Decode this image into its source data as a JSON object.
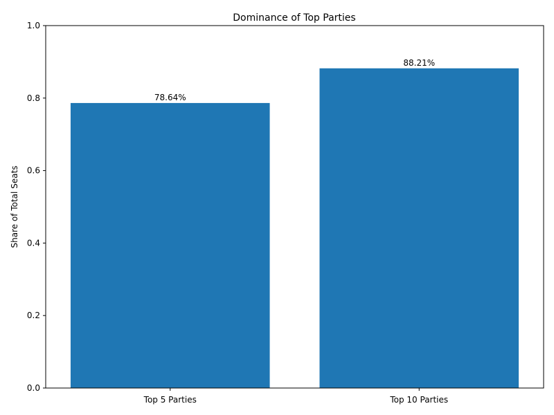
{
  "chart_data": {
    "type": "bar",
    "title": "Dominance of Top Parties",
    "xlabel": "",
    "ylabel": "Share of Total Seats",
    "categories": [
      "Top 5 Parties",
      "Top 10 Parties"
    ],
    "values": [
      0.7864,
      0.8821
    ],
    "data_labels": [
      "78.64%",
      "88.21%"
    ],
    "ylim": [
      0,
      1.0
    ],
    "yticks": [
      0.0,
      0.2,
      0.4,
      0.6,
      0.8,
      1.0
    ],
    "ytick_labels": [
      "0.0",
      "0.2",
      "0.4",
      "0.6",
      "0.8",
      "1.0"
    ],
    "bar_color": "#1f77b4",
    "grid": false,
    "legend": "none"
  }
}
